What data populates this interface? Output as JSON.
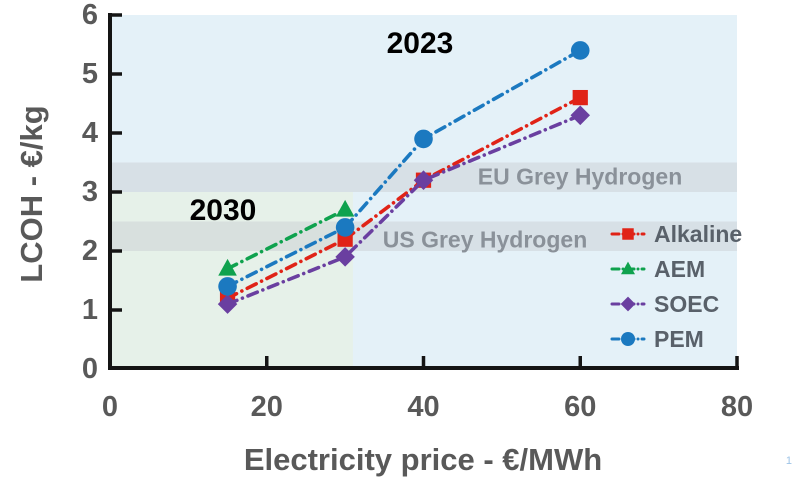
{
  "page": {
    "page_number": "1"
  },
  "chart_data": {
    "type": "line",
    "subtype": "scatter-line-dashdot",
    "title": "",
    "xlabel": "Electricity price - €/MWh",
    "ylabel": "LCOH - €/kg",
    "xlim": [
      0,
      80
    ],
    "ylim": [
      0,
      6
    ],
    "x_ticks": [
      "0",
      "20",
      "40",
      "60",
      "80"
    ],
    "y_ticks": [
      "0",
      "1",
      "2",
      "3",
      "4",
      "5",
      "6"
    ],
    "grid": false,
    "legend_position": "right-middle",
    "series": [
      {
        "name": "Alkaline",
        "marker": "square",
        "color": "#e02317",
        "x": [
          15,
          30,
          40,
          60
        ],
        "y": [
          1.2,
          2.2,
          3.2,
          4.6
        ]
      },
      {
        "name": "AEM",
        "marker": "triangle",
        "color": "#0fa24e",
        "x": [
          15,
          30
        ],
        "y": [
          1.7,
          2.7
        ]
      },
      {
        "name": "SOEC",
        "marker": "diamond",
        "color": "#6a3fa0",
        "x": [
          15,
          30,
          40,
          60
        ],
        "y": [
          1.1,
          1.9,
          3.2,
          4.3
        ]
      },
      {
        "name": "PEM",
        "marker": "circle",
        "color": "#1b79c0",
        "x": [
          15,
          30,
          40,
          60
        ],
        "y": [
          1.4,
          2.4,
          3.9,
          5.4
        ]
      }
    ],
    "regions": [
      {
        "name": "scenario-2023-area",
        "x": [
          0,
          80
        ],
        "y": [
          0,
          6
        ],
        "fill": "#e4f1f8"
      },
      {
        "name": "scenario-2030-area",
        "x": [
          0,
          31
        ],
        "y": [
          0,
          3
        ],
        "fill": "#e6f1e9"
      }
    ],
    "bands": [
      {
        "label": "EU Grey Hydrogen",
        "y": [
          3.0,
          3.5
        ],
        "fill": "rgba(200,205,208,0.45)"
      },
      {
        "label": "US Grey Hydrogen",
        "y": [
          2.0,
          2.5
        ],
        "fill": "rgba(200,205,208,0.45)"
      }
    ],
    "annotations": {
      "year_2023": {
        "text": "2023",
        "color": "#199dde"
      },
      "year_2030": {
        "text": "2030",
        "color": "#0ca04a"
      },
      "eu_band_label": "EU Grey Hydrogen",
      "us_band_label": "US Grey Hydrogen"
    }
  }
}
